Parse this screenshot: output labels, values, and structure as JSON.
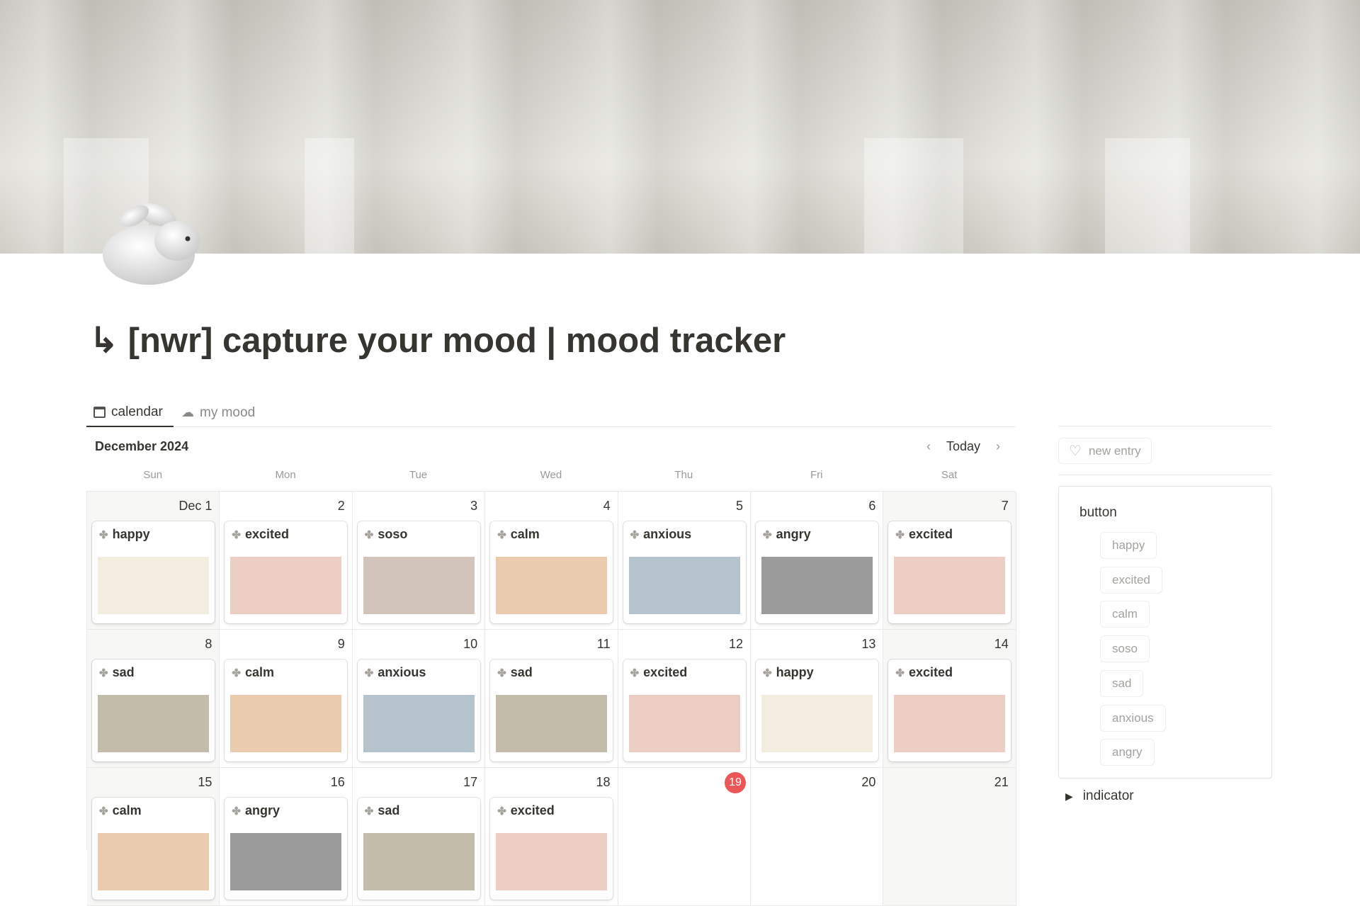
{
  "page": {
    "title": "↳ [nwr] capture your mood | mood tracker"
  },
  "tabs": [
    {
      "label": "calendar",
      "icon": "calendar-icon"
    },
    {
      "label": "my mood",
      "icon": "cloud-icon"
    }
  ],
  "calendar": {
    "month": "December 2024",
    "today_label": "Today",
    "weekdays": [
      "Sun",
      "Mon",
      "Tue",
      "Wed",
      "Thu",
      "Fri",
      "Sat"
    ],
    "today": "19",
    "days": [
      {
        "day": "Dec 1",
        "mood": "happy"
      },
      {
        "day": "2",
        "mood": "excited"
      },
      {
        "day": "3",
        "mood": "soso"
      },
      {
        "day": "4",
        "mood": "calm"
      },
      {
        "day": "5",
        "mood": "anxious"
      },
      {
        "day": "6",
        "mood": "angry"
      },
      {
        "day": "7",
        "mood": "excited"
      },
      {
        "day": "8",
        "mood": "sad"
      },
      {
        "day": "9",
        "mood": "calm"
      },
      {
        "day": "10",
        "mood": "anxious"
      },
      {
        "day": "11",
        "mood": "sad"
      },
      {
        "day": "12",
        "mood": "excited"
      },
      {
        "day": "13",
        "mood": "happy"
      },
      {
        "day": "14",
        "mood": "excited"
      },
      {
        "day": "15",
        "mood": "calm"
      },
      {
        "day": "16",
        "mood": "angry"
      },
      {
        "day": "17",
        "mood": "sad"
      },
      {
        "day": "18",
        "mood": "excited"
      },
      {
        "day": "19",
        "mood": null
      },
      {
        "day": "20",
        "mood": null
      },
      {
        "day": "21",
        "mood": null
      }
    ]
  },
  "mood_colors": {
    "happy": "#f3ede0",
    "excited": "#ebcdc4",
    "soso": "#d3c4bb",
    "calm": "#ebcbae",
    "anxious": "#b5c4cc",
    "angry": "#9b9b9b",
    "sad": "#c4bcaa"
  },
  "today_color": "#eb5757",
  "sidebar": {
    "new_entry": "new entry",
    "button_title": "button",
    "buttons": [
      "happy",
      "excited",
      "calm",
      "soso",
      "sad",
      "anxious",
      "angry"
    ],
    "indicator": "indicator"
  }
}
